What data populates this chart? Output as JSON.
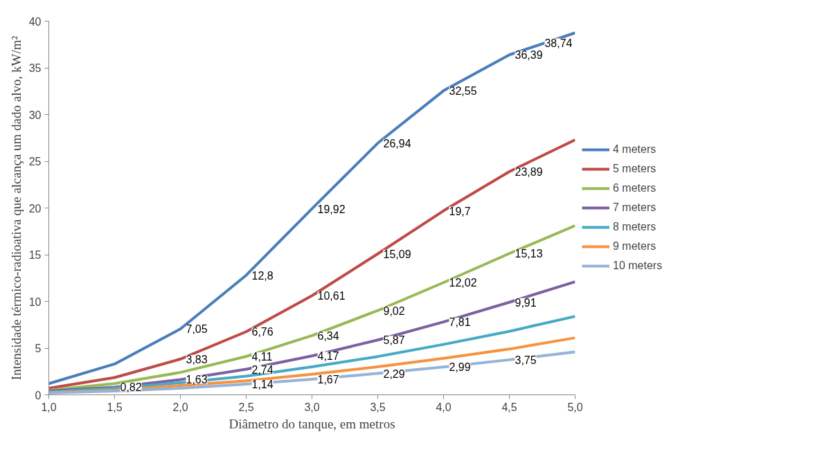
{
  "chart_data": {
    "type": "line",
    "xlabel": "Diâmetro do tanque, em metros",
    "ylabel": "Intensidade térmico-radioativa que alcança um dado alvo, kW/m²",
    "x": [
      1.0,
      1.5,
      2.0,
      2.5,
      3.0,
      3.5,
      4.0,
      4.5,
      5.0
    ],
    "xlim": [
      1.0,
      5.0
    ],
    "xticks": [
      {
        "value": 1.0,
        "label": "1,0"
      },
      {
        "value": 1.5,
        "label": "1,5"
      },
      {
        "value": 2.0,
        "label": "2,0"
      },
      {
        "value": 2.5,
        "label": "2,5"
      },
      {
        "value": 3.0,
        "label": "3,0"
      },
      {
        "value": 3.5,
        "label": "3,5"
      },
      {
        "value": 4.0,
        "label": "4,0"
      },
      {
        "value": 4.5,
        "label": "4,5"
      },
      {
        "value": 5.0,
        "label": "5,0"
      }
    ],
    "ylim": [
      0,
      40
    ],
    "yticks": [
      0,
      5,
      10,
      15,
      20,
      25,
      30,
      35,
      40
    ],
    "grid": false,
    "legend": "right",
    "marker": "none",
    "line_style": "solid",
    "series": [
      {
        "name": "4 meters",
        "color": "#4a7ebb",
        "values": [
          1.2,
          3.3,
          7.05,
          12.8,
          19.92,
          26.94,
          32.55,
          36.39,
          38.74
        ],
        "value_labels": [
          null,
          null,
          "7,05",
          "12,8",
          "19,92",
          "26,94",
          "32,55",
          "36,39",
          "38,74"
        ]
      },
      {
        "name": "5 meters",
        "color": "#be4b48",
        "values": [
          0.7,
          1.85,
          3.83,
          6.76,
          10.61,
          15.09,
          19.7,
          23.89,
          27.3
        ],
        "value_labels": [
          null,
          null,
          "3,83",
          "6,76",
          "10,61",
          "15,09",
          "19,7",
          "23,89",
          null
        ]
      },
      {
        "name": "6 meters",
        "color": "#98b954",
        "values": [
          0.5,
          1.2,
          2.4,
          4.11,
          6.34,
          9.02,
          12.02,
          15.13,
          18.1
        ],
        "value_labels": [
          null,
          null,
          null,
          "4,11",
          "6,34",
          "9,02",
          "12,02",
          "15,13",
          null
        ]
      },
      {
        "name": "7 meters",
        "color": "#7d60a0",
        "values": [
          0.4,
          0.82,
          1.63,
          2.74,
          4.17,
          5.87,
          7.81,
          9.91,
          12.1
        ],
        "value_labels": [
          null,
          "0,82",
          "1,63",
          "2,74",
          "4,17",
          "5,87",
          "7,81",
          "9,91",
          null
        ]
      },
      {
        "name": "8 meters",
        "color": "#46aac5",
        "values": [
          0.3,
          0.7,
          1.3,
          2.0,
          3.0,
          4.1,
          5.4,
          6.8,
          8.4
        ]
      },
      {
        "name": "9 meters",
        "color": "#f69240",
        "values": [
          0.25,
          0.5,
          1.0,
          1.5,
          2.2,
          3.0,
          3.9,
          4.9,
          6.1
        ]
      },
      {
        "name": "10 meters",
        "color": "#95b3d7",
        "values": [
          0.2,
          0.4,
          0.7,
          1.14,
          1.67,
          2.29,
          2.99,
          3.75,
          4.6
        ],
        "value_labels": [
          null,
          null,
          null,
          "1,14",
          "1,67",
          "2,29",
          "2,99",
          "3,75",
          null
        ]
      }
    ]
  }
}
